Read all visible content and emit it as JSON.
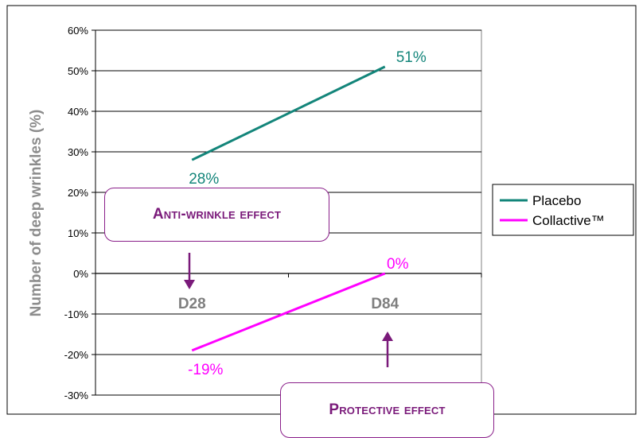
{
  "chart_data": {
    "type": "line",
    "categories": [
      "D28",
      "D84"
    ],
    "ylabel": "Number of deep wrinkles (%)",
    "ylim": [
      -30,
      60
    ],
    "yticks": [
      60,
      50,
      40,
      30,
      20,
      10,
      0,
      -10,
      -20,
      -30
    ],
    "ytick_labels": [
      "60%",
      "50%",
      "40%",
      "30%",
      "20%",
      "10%",
      "0%",
      "-10%",
      "-20%",
      "-30%"
    ],
    "grid": true,
    "legend": "right",
    "series": [
      {
        "name": "Placebo",
        "values": [
          28,
          51
        ],
        "labels": [
          "28%",
          "51%"
        ],
        "color": "#13857a"
      },
      {
        "name": "Collactive™",
        "values": [
          -19,
          0
        ],
        "labels": [
          "-19%",
          "0%"
        ],
        "color": "#ff00ff"
      }
    ],
    "annotations": [
      {
        "text": "Anti-wrinkle effect",
        "arrow": "down",
        "color": "#7a1a7a"
      },
      {
        "text": "Protective effect",
        "arrow": "up",
        "color": "#7a1a7a"
      }
    ]
  }
}
